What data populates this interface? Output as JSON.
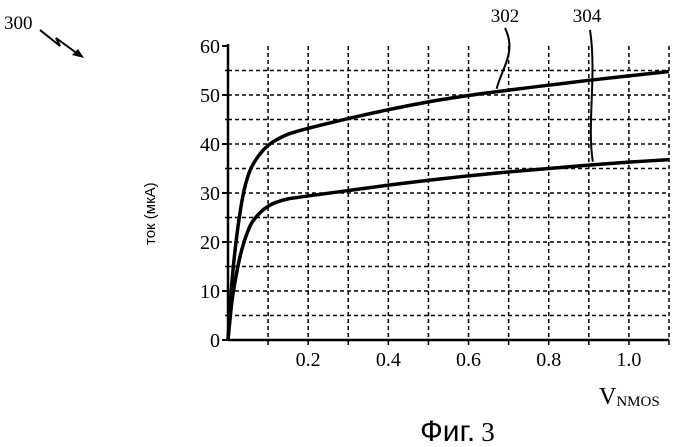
{
  "figure": {
    "number_label": "300",
    "caption_prefix": "Фиг.",
    "caption_number": "3"
  },
  "chart_data": {
    "type": "line",
    "xlabel_main": "V",
    "xlabel_sub": "NMOS",
    "ylabel": "ток (мкА)",
    "xlim": [
      0,
      1.1
    ],
    "ylim": [
      0,
      60
    ],
    "x_ticks": [
      "0.2",
      "0.4",
      "0.6",
      "0.8",
      "1.0"
    ],
    "y_ticks": [
      "0",
      "10",
      "20",
      "30",
      "40",
      "50",
      "60"
    ],
    "grid": true,
    "series": [
      {
        "name": "302",
        "x": [
          0,
          0.01,
          0.02,
          0.03,
          0.04,
          0.05,
          0.06,
          0.08,
          0.1,
          0.12,
          0.15,
          0.2,
          0.3,
          0.4,
          0.5,
          0.6,
          0.7,
          0.8,
          0.9,
          1.0,
          1.1
        ],
        "y": [
          0,
          12,
          20,
          26,
          30.5,
          33.5,
          35.5,
          38,
          39.7,
          40.8,
          42,
          43.2,
          45.2,
          47,
          48.6,
          49.9,
          51,
          52,
          53,
          53.9,
          54.8
        ]
      },
      {
        "name": "304",
        "x": [
          0,
          0.01,
          0.02,
          0.03,
          0.04,
          0.05,
          0.06,
          0.08,
          0.1,
          0.12,
          0.15,
          0.2,
          0.3,
          0.4,
          0.5,
          0.6,
          0.7,
          0.8,
          0.9,
          1.0,
          1.1
        ],
        "y": [
          0,
          8,
          13,
          17,
          20,
          22.3,
          24,
          26,
          27.3,
          28.1,
          28.8,
          29.4,
          30.5,
          31.6,
          32.6,
          33.5,
          34.3,
          35,
          35.7,
          36.3,
          36.8
        ]
      }
    ]
  }
}
